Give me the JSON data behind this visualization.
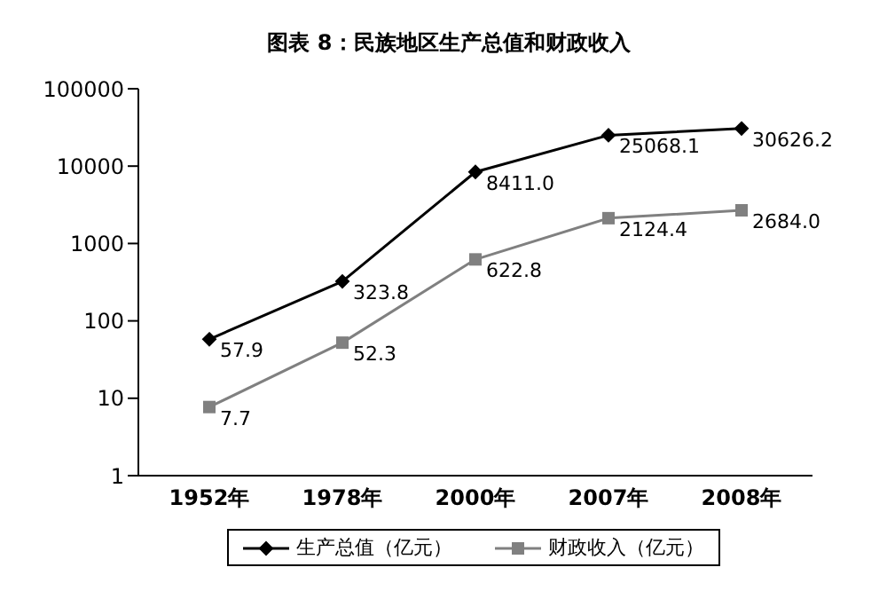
{
  "chart_data": {
    "type": "line",
    "title": "图表 8：民族地区生产总值和财政收入",
    "categories": [
      "1952年",
      "1978年",
      "2000年",
      "2007年",
      "2008年"
    ],
    "series": [
      {
        "name": "生产总值（亿元）",
        "color": "#000000",
        "marker": "diamond",
        "values": [
          57.9,
          323.8,
          8411.0,
          25068.1,
          30626.2
        ],
        "value_labels": [
          "57.9",
          "323.8",
          "8411.0",
          "25068.1",
          "30626.2"
        ]
      },
      {
        "name": "财政收入（亿元）",
        "color": "#808080",
        "marker": "square",
        "values": [
          7.7,
          52.3,
          622.8,
          2124.4,
          2684.0
        ],
        "value_labels": [
          "7.7",
          "52.3",
          "622.8",
          "2124.4",
          "2684.0"
        ]
      }
    ],
    "log": true,
    "ylim": [
      1,
      100000
    ],
    "yticks": [
      1,
      10,
      100,
      1000,
      10000,
      100000
    ],
    "grid": false,
    "legend": "bottom"
  }
}
